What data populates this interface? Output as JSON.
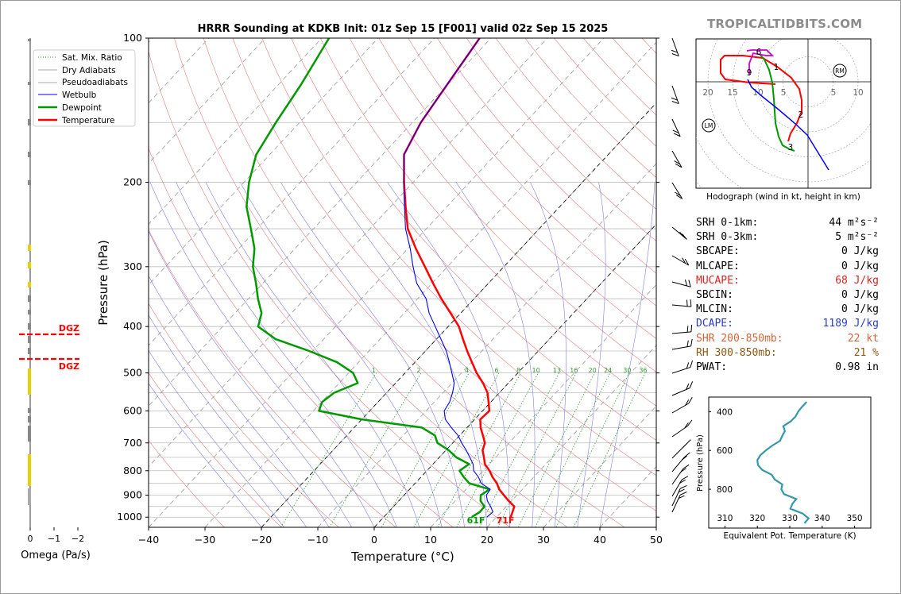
{
  "title": "HRRR Sounding at KDKB Init: 01z Sep 15 [F001] valid 02z Sep 15 2025",
  "watermark": "TROPICALTIDBITS.COM",
  "colors": {
    "temperature": "#ff0000",
    "dewpoint": "#009900",
    "wetbulb": "#0000ff",
    "sat_mix": "#339933",
    "dry_adiabat": "#e08080",
    "pseudoadiabat": "#8080e0",
    "hodo_0_3": "#cc00cc",
    "theta_e": "#3399aa",
    "dgz": "#ff0000"
  },
  "skewt": {
    "xlabel": "Temperature (°C)",
    "ylabel": "Pressure (hPa)",
    "x_ticks": [
      "−40",
      "−30",
      "−20",
      "−10",
      "0",
      "10",
      "20",
      "30",
      "40",
      "50"
    ],
    "y_ticks": [
      "100",
      "200",
      "300",
      "400",
      "500",
      "600",
      "700",
      "800",
      "900",
      "1000"
    ],
    "surface_temp_label": "71F",
    "surface_dewpoint_label": "61F",
    "mixing_ratio_labels": [
      "1",
      "2",
      "4",
      "6",
      "8",
      "10",
      "13",
      "16",
      "20",
      "24",
      "30",
      "36"
    ],
    "legend": [
      "Sat. Mix. Ratio",
      "Dry Adiabats",
      "Pseudoadiabats",
      "Wetbulb",
      "Dewpoint",
      "Temperature"
    ]
  },
  "chart_data": {
    "type": "line",
    "title": "HRRR Sounding at KDKB Init: 01z Sep 15 [F001] valid 02z Sep 15 2025",
    "xlabel": "Temperature (°C)",
    "ylabel": "Pressure (hPa)",
    "xlim": [
      -40,
      50
    ],
    "ylim": [
      1050,
      100
    ],
    "y_scale": "log",
    "grid": true,
    "legend_position": "top-left",
    "series": [
      {
        "name": "Temperature",
        "points": [
          [
            22.5,
            1000
          ],
          [
            22.1,
            980
          ],
          [
            21.4,
            950
          ],
          [
            19.5,
            925
          ],
          [
            17.7,
            900
          ],
          [
            15.9,
            875
          ],
          [
            14.5,
            850
          ],
          [
            12.7,
            825
          ],
          [
            11.1,
            800
          ],
          [
            9.2,
            775
          ],
          [
            7.9,
            750
          ],
          [
            6.5,
            725
          ],
          [
            5.7,
            700
          ],
          [
            4.1,
            675
          ],
          [
            2.4,
            650
          ],
          [
            1.0,
            625
          ],
          [
            1.2,
            600
          ],
          [
            -0.4,
            575
          ],
          [
            -2.1,
            550
          ],
          [
            -4.5,
            525
          ],
          [
            -7.3,
            500
          ],
          [
            -9.9,
            475
          ],
          [
            -12.6,
            450
          ],
          [
            -15.3,
            425
          ],
          [
            -18.1,
            400
          ],
          [
            -21.8,
            375
          ],
          [
            -25.8,
            350
          ],
          [
            -29.8,
            325
          ],
          [
            -34.0,
            300
          ],
          [
            -38.6,
            275
          ],
          [
            -43.3,
            250
          ],
          [
            -47.3,
            225
          ],
          [
            -51.6,
            200
          ],
          [
            -56.2,
            175
          ],
          [
            -58.5,
            150
          ],
          [
            -60.1,
            125
          ],
          [
            -62.0,
            100
          ]
        ]
      },
      {
        "name": "Dewpoint",
        "points": [
          [
            15.6,
            1000
          ],
          [
            16.2,
            975
          ],
          [
            16.1,
            950
          ],
          [
            14.5,
            925
          ],
          [
            13.6,
            900
          ],
          [
            14.2,
            875
          ],
          [
            9.6,
            850
          ],
          [
            7.6,
            825
          ],
          [
            5.8,
            800
          ],
          [
            6.4,
            775
          ],
          [
            3.0,
            750
          ],
          [
            0.5,
            725
          ],
          [
            -2.7,
            700
          ],
          [
            -4.4,
            675
          ],
          [
            -8.0,
            650
          ],
          [
            -20.0,
            625
          ],
          [
            -29.0,
            600
          ],
          [
            -29.9,
            575
          ],
          [
            -29.3,
            550
          ],
          [
            -26.7,
            525
          ],
          [
            -29.2,
            500
          ],
          [
            -33.8,
            475
          ],
          [
            -40.6,
            450
          ],
          [
            -48.5,
            425
          ],
          [
            -53.7,
            400
          ],
          [
            -55.3,
            375
          ],
          [
            -58.3,
            350
          ],
          [
            -61.2,
            325
          ],
          [
            -64.5,
            300
          ],
          [
            -67.2,
            275
          ],
          [
            -71.1,
            250
          ],
          [
            -75.5,
            225
          ],
          [
            -79.1,
            200
          ],
          [
            -82.4,
            175
          ],
          [
            -84.2,
            150
          ],
          [
            -86.0,
            125
          ],
          [
            -88.7,
            100
          ]
        ]
      },
      {
        "name": "Wetbulb",
        "points": [
          [
            18.3,
            1000
          ],
          [
            18.5,
            975
          ],
          [
            17.2,
            950
          ],
          [
            15.7,
            925
          ],
          [
            14.6,
            900
          ],
          [
            14.3,
            875
          ],
          [
            11.7,
            850
          ],
          [
            10.2,
            825
          ],
          [
            8.3,
            800
          ],
          [
            7.1,
            775
          ],
          [
            5.4,
            750
          ],
          [
            3.6,
            725
          ],
          [
            1.6,
            700
          ],
          [
            -0.3,
            675
          ],
          [
            -2.8,
            650
          ],
          [
            -5.2,
            625
          ],
          [
            -6.8,
            600
          ],
          [
            -7.3,
            575
          ],
          [
            -8.3,
            550
          ],
          [
            -9.6,
            525
          ],
          [
            -11.7,
            500
          ],
          [
            -13.9,
            475
          ],
          [
            -16.3,
            450
          ],
          [
            -19.2,
            425
          ],
          [
            -22.3,
            400
          ],
          [
            -25.6,
            375
          ],
          [
            -28.5,
            350
          ],
          [
            -32.7,
            325
          ],
          [
            -36.1,
            300
          ],
          [
            -39.6,
            275
          ],
          [
            -43.7,
            250
          ],
          [
            -47.5,
            225
          ],
          [
            -51.7,
            200
          ],
          [
            -56.2,
            175
          ],
          [
            -58.5,
            150
          ],
          [
            -60.1,
            125
          ],
          [
            -62.0,
            100
          ]
        ]
      }
    ],
    "surface": {
      "temperature_label": "71F",
      "dewpoint_label": "61F"
    },
    "omega_panel": {
      "xlabel": "Omega (Pa/s)",
      "x_ticks": [
        "0",
        "−1",
        "−2"
      ],
      "dgz_label": "DGZ",
      "dgz_bounds_hpa": [
        415,
        465
      ]
    },
    "hodograph": {
      "caption": "Hodograph (wind in kt, height in km)",
      "ring_labels": [
        "20",
        "15",
        "10",
        "5",
        "5",
        "10"
      ],
      "height_labels": [
        "1",
        "2",
        "3",
        "6",
        "9"
      ],
      "markers": [
        "RM",
        "LM"
      ],
      "u_v_kt": [
        [
          -5.5,
          7.5
        ],
        [
          -7.5,
          10
        ],
        [
          -5,
          4
        ],
        [
          -1,
          1
        ],
        [
          1,
          -3
        ],
        [
          1,
          -6
        ],
        [
          -1,
          -10
        ],
        [
          -2,
          -13
        ],
        [
          -3,
          -15
        ],
        [
          -5,
          -16
        ],
        [
          -8,
          -14
        ],
        [
          -9,
          -10
        ],
        [
          -11,
          -9
        ],
        [
          -12,
          -7
        ],
        [
          -13,
          -2
        ],
        [
          -14,
          3
        ],
        [
          -15,
          7
        ],
        [
          -15,
          10
        ],
        [
          -11,
          12
        ],
        [
          -10,
          13
        ]
      ]
    },
    "theta_e_profile": {
      "xlabel": "Equivalent Pot. Temperature (K)",
      "ylabel": "Pressure (hPa)",
      "x_ticks": [
        "310",
        "320",
        "330",
        "340",
        "350"
      ],
      "y_ticks": [
        "400",
        "600",
        "800"
      ],
      "points": [
        [
          334.5,
          975
        ],
        [
          335.8,
          950
        ],
        [
          334.0,
          925
        ],
        [
          330.2,
          900
        ],
        [
          330.8,
          875
        ],
        [
          332.0,
          850
        ],
        [
          328.2,
          825
        ],
        [
          327.4,
          800
        ],
        [
          327.7,
          775
        ],
        [
          325.4,
          750
        ],
        [
          324.4,
          725
        ],
        [
          321.5,
          700
        ],
        [
          320.2,
          675
        ],
        [
          320.0,
          650
        ],
        [
          320.9,
          625
        ],
        [
          322.6,
          600
        ],
        [
          324.6,
          575
        ],
        [
          327.0,
          550
        ],
        [
          327.7,
          525
        ],
        [
          328.5,
          500
        ],
        [
          328.0,
          475
        ],
        [
          330.3,
          450
        ],
        [
          331.8,
          425
        ],
        [
          332.6,
          400
        ],
        [
          333.8,
          375
        ],
        [
          335.2,
          350
        ]
      ]
    }
  },
  "stats": [
    {
      "label": "SRH 0-1km:",
      "value": "44 m²s⁻²",
      "color": "#000000"
    },
    {
      "label": "SRH 0-3km:",
      "value": "5 m²s⁻²",
      "color": "#000000"
    },
    {
      "label": "SBCAPE:",
      "value": "0 J/kg",
      "color": "#000000"
    },
    {
      "label": "MLCAPE:",
      "value": "0 J/kg",
      "color": "#000000"
    },
    {
      "label": "MUCAPE:",
      "value": "68 J/kg",
      "color": "#dd2222"
    },
    {
      "label": "SBCIN:",
      "value": "0 J/kg",
      "color": "#000000"
    },
    {
      "label": "MLCIN:",
      "value": "0 J/kg",
      "color": "#000000"
    },
    {
      "label": "DCAPE:",
      "value": "1189 J/kg",
      "color": "#2a3acc"
    },
    {
      "label": "SHR 200-850mb:",
      "value": "22 kt",
      "color": "#d2643c"
    },
    {
      "label": "RH 300-850mb:",
      "value": "21 %",
      "color": "#8a5a14"
    },
    {
      "label": "PWAT:",
      "value": "0.98 in",
      "color": "#000000"
    }
  ]
}
